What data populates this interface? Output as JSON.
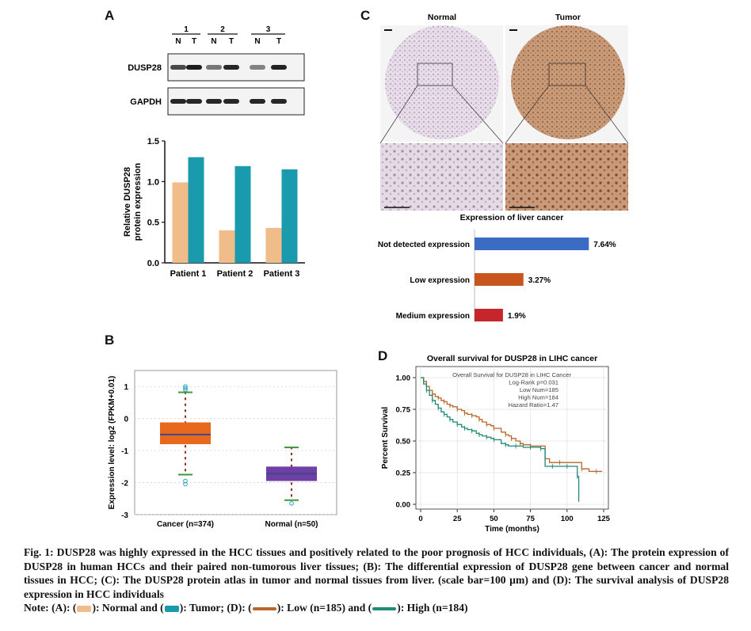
{
  "panelA": {
    "label": "A",
    "blot": {
      "patients": [
        "1",
        "2",
        "3"
      ],
      "lanes": [
        "N",
        "T",
        "N",
        "T",
        "N",
        "T"
      ],
      "rows": [
        "DUSP28",
        "GAPDH"
      ]
    },
    "chart_data": {
      "type": "bar",
      "categories": [
        "Patient 1",
        "Patient 2",
        "Patient 3"
      ],
      "series": [
        {
          "color": "#f0bd8a",
          "values": [
            0.99,
            0.4,
            0.43
          ]
        },
        {
          "color": "#1a9bad",
          "values": [
            1.3,
            1.19,
            1.15
          ]
        }
      ],
      "ylabel": [
        "Relative DUSP28",
        "protein expression"
      ],
      "ylim": [
        0,
        1.5
      ],
      "yticks": [
        "0.0",
        "0.5",
        "1.0",
        "1.5"
      ]
    }
  },
  "panelB": {
    "label": "B",
    "chart_data": {
      "type": "box",
      "ylabel": "Expression level: log2 (FPKM+0.01)",
      "ylim": [
        -3,
        1.5
      ],
      "yticks": [
        "1",
        "0",
        "-1",
        "-2",
        "-3"
      ],
      "groups": [
        {
          "label": "Cancer (n=374)",
          "color": "#e8681c",
          "median": -0.5,
          "q1": -0.8,
          "q3": -0.12,
          "whisker_low": -1.75,
          "whisker_high": 0.82,
          "outliers": [
            1.0,
            0.95,
            0.9,
            -1.95,
            -2.05
          ]
        },
        {
          "label": "Normal (n=50)",
          "color": "#6f3fa3",
          "median": -1.72,
          "q1": -1.95,
          "q3": -1.5,
          "whisker_low": -2.55,
          "whisker_high": -0.9,
          "outliers": [
            -2.65
          ]
        }
      ]
    }
  },
  "panelC": {
    "label": "C",
    "tissue_titles": [
      "Normal",
      "Tumor"
    ],
    "chart_data": {
      "type": "bar",
      "orientation": "horizontal",
      "title": "Expression of liver cancer",
      "categories": [
        "Not detected expression",
        "Low expression",
        "Medium expression"
      ],
      "values": [
        7.64,
        3.27,
        1.9
      ],
      "value_labels": [
        "7.64%",
        "3.27%",
        "1.9%"
      ],
      "colors": [
        "#3a6cc4",
        "#c8561c",
        "#c4262b"
      ],
      "xlim": [
        0,
        9
      ]
    }
  },
  "panelD": {
    "label": "D",
    "chart_data": {
      "type": "line",
      "title": "Overall survival for DUSP28 in LIHC cancer",
      "xlabel": "Time (months)",
      "ylabel": "Percent Survival",
      "xlim": [
        0,
        125
      ],
      "ylim": [
        0,
        1.0
      ],
      "xticks": [
        "0",
        "25",
        "50",
        "75",
        "100",
        "125"
      ],
      "yticks": [
        "1.00",
        "0.75",
        "0.50",
        "0.25",
        "0.00"
      ],
      "legend": [
        "Overall Survival for DUSP28 in LIHC Cancer",
        "Log-Rank p=0.031",
        "Low Num=185",
        "High Num=184",
        "Hazard Ratio=1.47"
      ],
      "series": [
        {
          "color": "#b8662a",
          "x": [
            0,
            2,
            4,
            6,
            8,
            10,
            12,
            14,
            16,
            18,
            20,
            22,
            25,
            28,
            30,
            32,
            35,
            38,
            40,
            42,
            45,
            48,
            50,
            55,
            58,
            60,
            62,
            65,
            68,
            70,
            75,
            80,
            85,
            88,
            95,
            105,
            110,
            115,
            120,
            124
          ],
          "y": [
            1.0,
            0.97,
            0.93,
            0.9,
            0.87,
            0.85,
            0.84,
            0.82,
            0.81,
            0.79,
            0.78,
            0.77,
            0.75,
            0.74,
            0.72,
            0.71,
            0.7,
            0.69,
            0.67,
            0.65,
            0.63,
            0.62,
            0.6,
            0.57,
            0.55,
            0.54,
            0.52,
            0.5,
            0.48,
            0.47,
            0.46,
            0.46,
            0.36,
            0.33,
            0.33,
            0.33,
            0.28,
            0.26,
            0.26,
            0.26
          ]
        },
        {
          "color": "#1f8a76",
          "x": [
            0,
            2,
            4,
            6,
            8,
            10,
            12,
            14,
            16,
            18,
            20,
            22,
            25,
            28,
            30,
            32,
            35,
            38,
            40,
            42,
            45,
            48,
            50,
            55,
            58,
            60,
            65,
            70,
            75,
            80,
            82,
            85,
            90,
            95,
            100,
            105,
            107,
            108
          ],
          "y": [
            1.0,
            0.95,
            0.9,
            0.86,
            0.82,
            0.79,
            0.76,
            0.73,
            0.71,
            0.69,
            0.67,
            0.65,
            0.63,
            0.61,
            0.6,
            0.59,
            0.58,
            0.56,
            0.55,
            0.54,
            0.53,
            0.52,
            0.51,
            0.48,
            0.47,
            0.46,
            0.46,
            0.45,
            0.45,
            0.45,
            0.44,
            0.3,
            0.3,
            0.3,
            0.3,
            0.3,
            0.22,
            0.02
          ]
        }
      ]
    }
  },
  "caption": {
    "text": "Fig. 1: DUSP28 was highly expressed in the HCC tissues and positively related to the poor prognosis of HCC individuals, (A): The protein expression of DUSP28 in human HCCs and their paired non-tumorous liver tissues; (B): The differential expression of DUSP28 gene between cancer and normal tissues in HCC; (C): The DUSP28 protein atlas in tumor and normal tissues from liver. (scale bar=100 µm) and (D): The survival analysis of DUSP28 expression in HCC individuals",
    "note_prefix": "Note: (A): (",
    "note_normal": "): Normal and (",
    "note_tumor": "): Tumor; (D): (",
    "note_low": "): Low (n=185) and (",
    "note_high": "): High (n=184)"
  }
}
